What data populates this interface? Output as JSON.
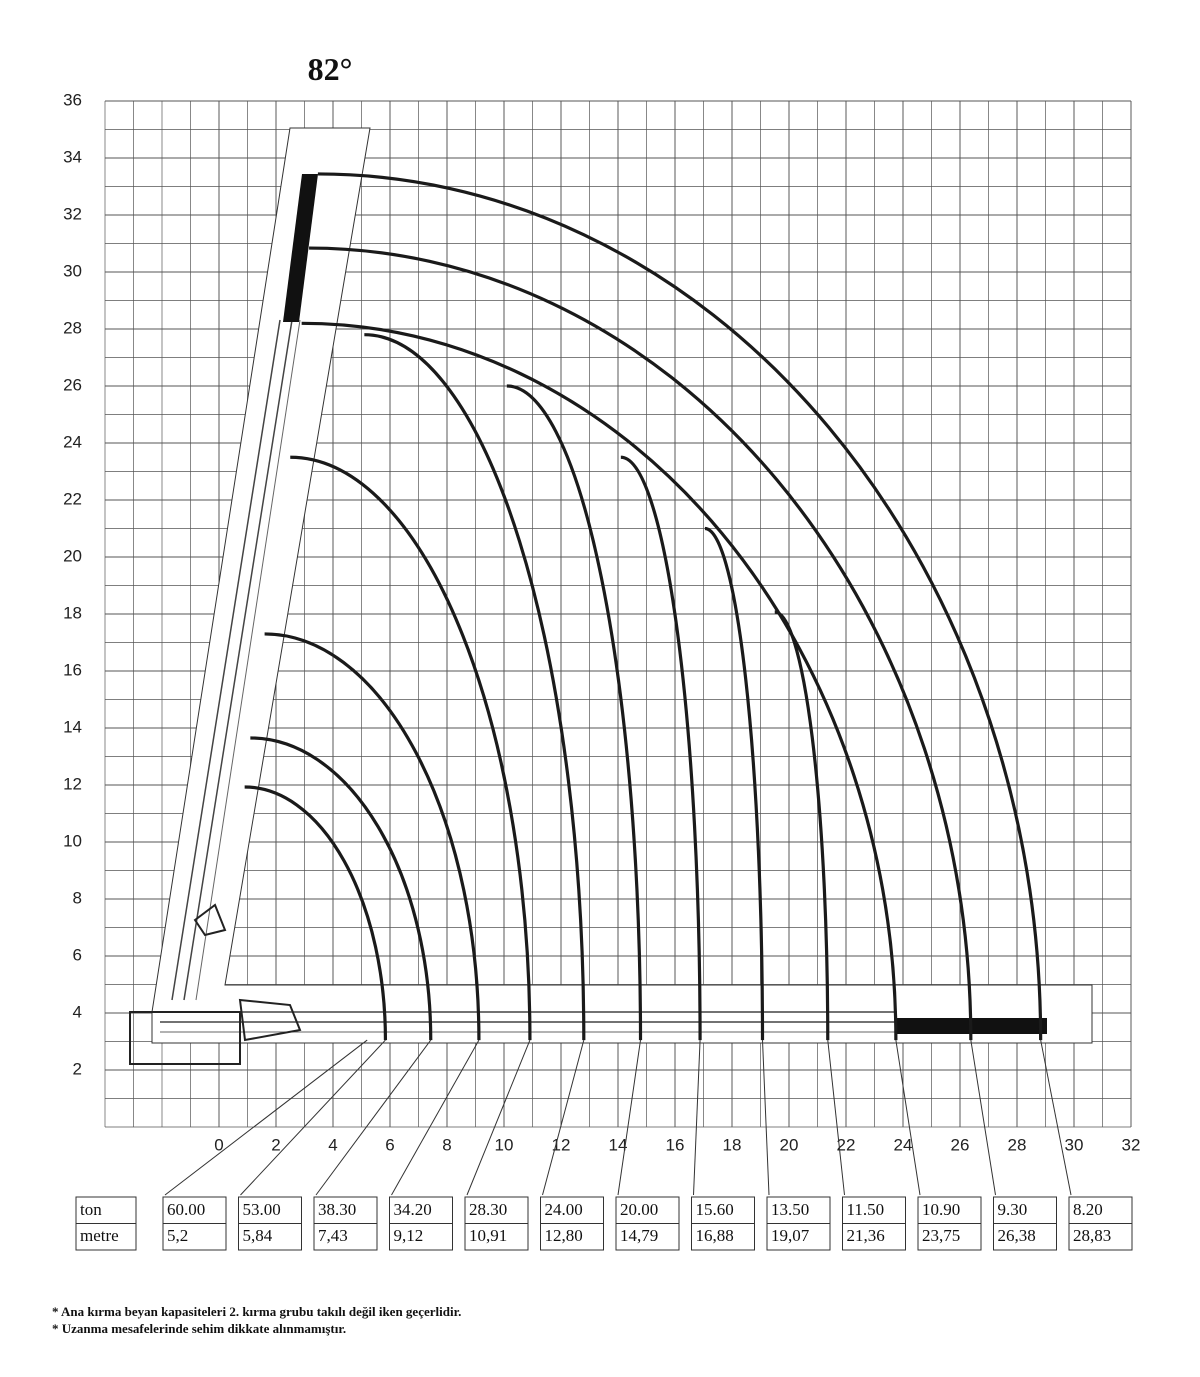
{
  "chart_data": {
    "type": "crane-load",
    "title": "82°",
    "xlim": [
      -4,
      32
    ],
    "ylim": [
      0,
      36
    ],
    "xticks": [
      0,
      2,
      4,
      6,
      8,
      10,
      12,
      14,
      16,
      18,
      20,
      22,
      24,
      26,
      28,
      30,
      32
    ],
    "yticks": [
      2,
      4,
      6,
      8,
      10,
      12,
      14,
      16,
      18,
      20,
      22,
      24,
      26,
      28,
      30,
      32,
      34,
      36
    ],
    "grid": true,
    "series": [
      {
        "name": "ton",
        "values": [
          60,
          53,
          38.3,
          34.2,
          28.3,
          24,
          20,
          15.6,
          13.5,
          11.5,
          10.9,
          9.3,
          8.2
        ],
        "value_labels": [
          "60.00",
          "53.00",
          "38.30",
          "34.20",
          "28.30",
          "24.00",
          "20.00",
          "15.60",
          "13.50",
          "11.50",
          "10.90",
          "9.30",
          "8.20"
        ]
      },
      {
        "name": "metre",
        "values": [
          5.2,
          5.84,
          7.43,
          9.12,
          10.91,
          12.8,
          14.79,
          16.88,
          19.07,
          21.36,
          23.75,
          26.38,
          28.83
        ],
        "value_labels": [
          "5,2",
          "5,84",
          "7,43",
          "9,12",
          "10,91",
          "12,80",
          "14,79",
          "16,88",
          "19,07",
          "21,36",
          "23,75",
          "26,38",
          "28,83"
        ]
      }
    ]
  },
  "notes": [
    "* Ana kırma beyan kapasiteleri 2. kırma grubu takılı değil iken geçerlidir.",
    "* Uzanma mesafelerinde sehim dikkate alınmamıştır."
  ]
}
